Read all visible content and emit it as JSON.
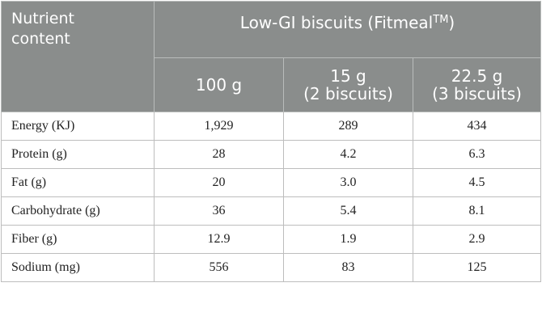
{
  "header": {
    "nutrient_label_line1": "Nutrient",
    "nutrient_label_line2": "content",
    "group_title": "Low-GI biscuits (Fitmeal",
    "group_title_sup": "TM",
    "group_title_end": ")",
    "columns": [
      {
        "line1": "100 g",
        "line2": ""
      },
      {
        "line1": "15 g",
        "line2": "(2 biscuits)"
      },
      {
        "line1": "22.5 g",
        "line2": "(3 biscuits)"
      }
    ]
  },
  "rows": [
    {
      "label": "Energy (KJ)",
      "values": [
        "1,929",
        "289",
        "434"
      ]
    },
    {
      "label": "Protein (g)",
      "values": [
        "28",
        "4.2",
        "6.3"
      ]
    },
    {
      "label": "Fat (g)",
      "values": [
        "20",
        "3.0",
        "4.5"
      ]
    },
    {
      "label": "Carbohydrate (g)",
      "values": [
        "36",
        "5.4",
        "8.1"
      ]
    },
    {
      "label": "Fiber (g)",
      "values": [
        "12.9",
        "1.9",
        "2.9"
      ]
    },
    {
      "label": "Sodium (mg)",
      "values": [
        "556",
        "83",
        "125"
      ]
    }
  ],
  "colors": {
    "header_bg": "#8a8d8c",
    "header_text": "#ffffff",
    "border": "#bdbdbd"
  }
}
